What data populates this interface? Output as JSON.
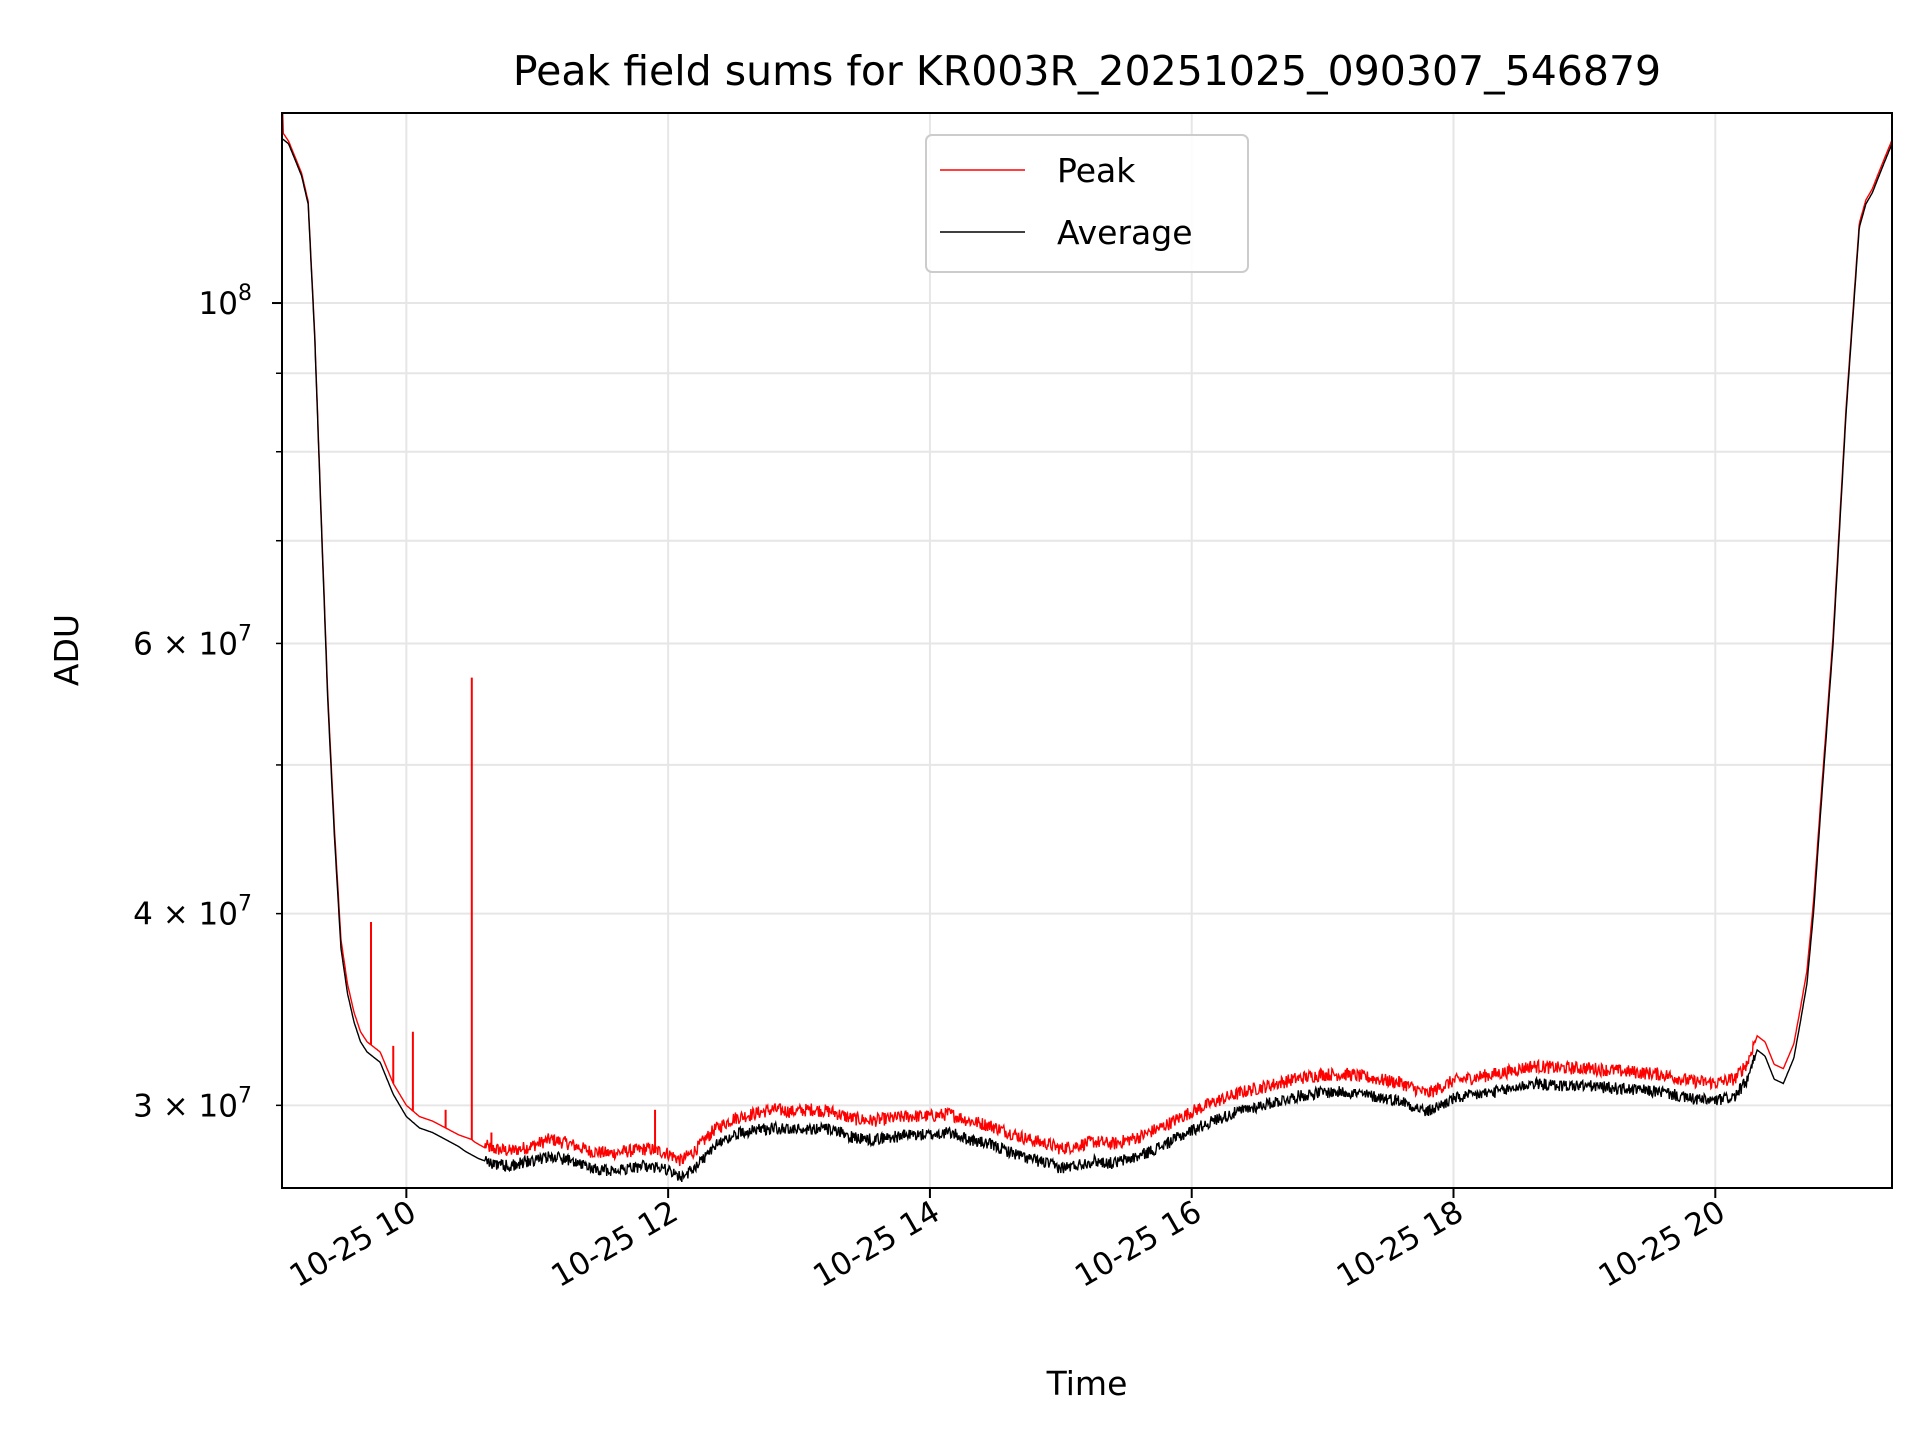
{
  "chart_data": {
    "type": "line",
    "title": "Peak field sums for KR003R_20251025_090307_546879",
    "xlabel": "Time",
    "ylabel": "ADU",
    "yscale": "log",
    "x_unit": "hours (2025-10-25)",
    "xlim": [
      9.05,
      21.35
    ],
    "ylim": [
      26500000,
      133000000
    ],
    "grid": true,
    "legend_position": "top-center",
    "x_ticks": [
      {
        "value": 10,
        "label": "10-25 10"
      },
      {
        "value": 12,
        "label": "10-25 12"
      },
      {
        "value": 14,
        "label": "10-25 14"
      },
      {
        "value": 16,
        "label": "10-25 16"
      },
      {
        "value": 18,
        "label": "10-25 18"
      },
      {
        "value": 20,
        "label": "10-25 20"
      }
    ],
    "y_major_ticks": [
      {
        "value": 100000000,
        "base": "10",
        "exp": "8"
      }
    ],
    "y_minor_ticks": [
      {
        "value": 30000000,
        "mant": "3",
        "base": "10",
        "exp": "7"
      },
      {
        "value": 40000000,
        "mant": "4",
        "base": "10",
        "exp": "7"
      },
      {
        "value": 60000000,
        "mant": "6",
        "base": "10",
        "exp": "7"
      }
    ],
    "y_minor_unlabeled": [
      50000000,
      70000000,
      80000000,
      90000000
    ],
    "series": [
      {
        "name": "Average",
        "color": "#000000",
        "x": [
          9.05,
          9.1,
          9.15,
          9.2,
          9.25,
          9.3,
          9.35,
          9.4,
          9.45,
          9.5,
          9.55,
          9.6,
          9.65,
          9.7,
          9.8,
          9.9,
          10.0,
          10.1,
          10.2,
          10.3,
          10.4,
          10.45,
          10.55,
          10.65,
          10.8,
          10.95,
          11.1,
          11.25,
          11.4,
          11.55,
          11.7,
          11.85,
          12.0,
          12.1,
          12.2,
          12.35,
          12.5,
          12.65,
          12.8,
          12.95,
          13.1,
          13.25,
          13.4,
          13.55,
          13.7,
          13.85,
          14.0,
          14.15,
          14.3,
          14.45,
          14.6,
          14.75,
          14.9,
          15.0,
          15.1,
          15.25,
          15.4,
          15.6,
          15.8,
          16.0,
          16.2,
          16.4,
          16.6,
          16.8,
          17.0,
          17.2,
          17.4,
          17.6,
          17.8,
          18.0,
          18.2,
          18.4,
          18.6,
          18.8,
          19.0,
          19.2,
          19.4,
          19.6,
          19.8,
          20.0,
          20.15,
          20.25,
          20.32,
          20.38,
          20.45,
          20.52,
          20.6,
          20.65,
          20.7,
          20.75,
          20.8,
          20.9,
          21.0,
          21.1,
          21.15,
          21.2,
          21.25,
          21.3,
          21.35
        ],
        "values": [
          128000000,
          127000000,
          124000000,
          121000000,
          116000000,
          95000000,
          72000000,
          55000000,
          45000000,
          38000000,
          35500000,
          34000000,
          33000000,
          32500000,
          32000000,
          30500000,
          29500000,
          29000000,
          28800000,
          28500000,
          28200000,
          28000000,
          27700000,
          27500000,
          27400000,
          27600000,
          27800000,
          27600000,
          27300000,
          27200000,
          27300000,
          27400000,
          27200000,
          26900000,
          27300000,
          28200000,
          28700000,
          28900000,
          29000000,
          28900000,
          29000000,
          28900000,
          28600000,
          28500000,
          28600000,
          28700000,
          28700000,
          28800000,
          28500000,
          28300000,
          28000000,
          27700000,
          27500000,
          27300000,
          27400000,
          27600000,
          27500000,
          27800000,
          28300000,
          28900000,
          29400000,
          29800000,
          30100000,
          30400000,
          30600000,
          30600000,
          30400000,
          30200000,
          29700000,
          30300000,
          30500000,
          30700000,
          31000000,
          30900000,
          30900000,
          30800000,
          30700000,
          30600000,
          30300000,
          30200000,
          30400000,
          31200000,
          32600000,
          32300000,
          31200000,
          31000000,
          32200000,
          34000000,
          36000000,
          40000000,
          46000000,
          60000000,
          85000000,
          112000000,
          116000000,
          118000000,
          121000000,
          124000000,
          127000000
        ]
      },
      {
        "name": "Peak",
        "color": "#ff0000",
        "x": [
          9.05,
          9.055,
          9.06,
          9.1,
          9.15,
          9.2,
          9.25,
          9.3,
          9.35,
          9.4,
          9.45,
          9.5,
          9.55,
          9.6,
          9.65,
          9.7,
          9.8,
          9.9,
          10.0,
          10.1,
          10.2,
          10.3,
          10.4,
          10.5,
          10.52,
          10.55,
          10.65,
          10.8,
          10.95,
          11.1,
          11.25,
          11.4,
          11.55,
          11.7,
          11.85,
          12.0,
          12.1,
          12.2,
          12.35,
          12.5,
          12.65,
          12.8,
          12.95,
          13.1,
          13.25,
          13.4,
          13.55,
          13.7,
          13.85,
          14.0,
          14.15,
          14.3,
          14.45,
          14.6,
          14.75,
          14.9,
          15.0,
          15.1,
          15.25,
          15.4,
          15.6,
          15.8,
          16.0,
          16.2,
          16.4,
          16.6,
          16.8,
          17.0,
          17.2,
          17.4,
          17.6,
          17.8,
          18.0,
          18.2,
          18.4,
          18.6,
          18.8,
          19.0,
          19.2,
          19.4,
          19.6,
          19.8,
          20.0,
          20.15,
          20.25,
          20.32,
          20.38,
          20.45,
          20.52,
          20.6,
          20.65,
          20.7,
          20.75,
          20.8,
          20.9,
          21.0,
          21.1,
          21.15,
          21.2,
          21.25,
          21.3,
          21.35
        ],
        "values": [
          128500000,
          133000000,
          129000000,
          127500000,
          124500000,
          121500000,
          116500000,
          95500000,
          72500000,
          55500000,
          45500000,
          38500000,
          36000000,
          34500000,
          33500000,
          33000000,
          32500000,
          31000000,
          30000000,
          29500000,
          29300000,
          29000000,
          28700000,
          28500000,
          28400000,
          28300000,
          28000000,
          27900000,
          28100000,
          28400000,
          28200000,
          27900000,
          27800000,
          27900000,
          28000000,
          27800000,
          27500000,
          27900000,
          28800000,
          29300000,
          29500000,
          29700000,
          29600000,
          29700000,
          29600000,
          29300000,
          29200000,
          29300000,
          29400000,
          29400000,
          29500000,
          29200000,
          29000000,
          28700000,
          28400000,
          28200000,
          28000000,
          28100000,
          28300000,
          28200000,
          28500000,
          29000000,
          29600000,
          30100000,
          30500000,
          30800000,
          31100000,
          31300000,
          31300000,
          31100000,
          30900000,
          30400000,
          31000000,
          31200000,
          31400000,
          31700000,
          31600000,
          31600000,
          31500000,
          31400000,
          31300000,
          31000000,
          30900000,
          31100000,
          31900000,
          33300000,
          33000000,
          31900000,
          31700000,
          32900000,
          34700000,
          36700000,
          40700000,
          46700000,
          60700000,
          85700000,
          112700000,
          116700000,
          118700000,
          121700000,
          124700000,
          127700000
        ],
        "spikes": [
          {
            "x": 9.73,
            "value": 39500000
          },
          {
            "x": 9.9,
            "value": 32800000
          },
          {
            "x": 10.05,
            "value": 33500000
          },
          {
            "x": 10.3,
            "value": 29800000
          },
          {
            "x": 10.5,
            "value": 57000000
          },
          {
            "x": 10.65,
            "value": 28800000
          },
          {
            "x": 11.9,
            "value": 29800000
          }
        ]
      }
    ]
  }
}
